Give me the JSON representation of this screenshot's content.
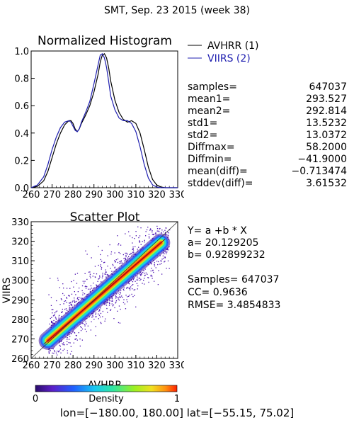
{
  "header": {
    "title": "SMT,  Sep. 23 2015 (week 38)"
  },
  "chart_data": [
    {
      "type": "line",
      "title": "Normalized Histogram",
      "xlim": [
        260,
        330
      ],
      "ylim": [
        0,
        1.0
      ],
      "x_ticks": [
        "260",
        "270",
        "280",
        "290",
        "300",
        "310",
        "320",
        "330"
      ],
      "y_ticks": [
        "0.0",
        "0.2",
        "0.4",
        "0.6",
        "0.8",
        "1.0"
      ],
      "series": [
        {
          "name": "AVHRR (1)",
          "color": "#000000",
          "x": [
            260,
            263,
            266,
            268,
            270,
            272,
            274,
            276,
            278,
            279,
            280,
            281,
            282,
            283,
            284,
            286,
            288,
            290,
            292,
            293,
            294,
            295,
            296,
            297,
            298,
            300,
            302,
            304,
            306,
            308,
            310,
            312,
            314,
            316,
            318,
            320,
            322,
            324,
            326,
            328,
            330
          ],
          "y": [
            0,
            0.01,
            0.05,
            0.12,
            0.22,
            0.32,
            0.4,
            0.46,
            0.49,
            0.49,
            0.47,
            0.43,
            0.41,
            0.43,
            0.47,
            0.53,
            0.6,
            0.7,
            0.83,
            0.92,
            0.97,
            0.98,
            0.95,
            0.88,
            0.78,
            0.64,
            0.55,
            0.5,
            0.48,
            0.49,
            0.47,
            0.4,
            0.28,
            0.15,
            0.06,
            0.02,
            0.005,
            0,
            0,
            0,
            0
          ]
        },
        {
          "name": "VIIRS (2)",
          "color": "#1f1fb0",
          "x": [
            260,
            263,
            266,
            268,
            270,
            272,
            274,
            276,
            278,
            279,
            280,
            281,
            282,
            283,
            284,
            286,
            288,
            290,
            292,
            293,
            294,
            295,
            296,
            297,
            298,
            300,
            302,
            304,
            306,
            308,
            310,
            312,
            314,
            316,
            318,
            320,
            322,
            324,
            326,
            328,
            330
          ],
          "y": [
            0,
            0.02,
            0.08,
            0.17,
            0.28,
            0.37,
            0.44,
            0.48,
            0.49,
            0.48,
            0.45,
            0.42,
            0.41,
            0.43,
            0.48,
            0.55,
            0.63,
            0.76,
            0.9,
            0.97,
            0.98,
            0.95,
            0.88,
            0.78,
            0.67,
            0.57,
            0.51,
            0.49,
            0.49,
            0.47,
            0.41,
            0.3,
            0.17,
            0.07,
            0.02,
            0.005,
            0,
            0,
            0,
            0,
            0
          ]
        }
      ]
    },
    {
      "type": "scatter",
      "title": "Scatter Plot",
      "xlabel": "AVHRR",
      "ylabel": "VIIRS",
      "xlim": [
        260,
        330
      ],
      "ylim": [
        260,
        330
      ],
      "x_ticks": [
        "260",
        "270",
        "280",
        "290",
        "300",
        "310",
        "320",
        "330"
      ],
      "y_ticks": [
        "260",
        "270",
        "280",
        "290",
        "300",
        "310",
        "320",
        "330"
      ],
      "fit": {
        "a": 20.129205,
        "b": 0.92899232
      },
      "colorbar": {
        "label": "Density",
        "min": "0",
        "max": "1"
      }
    }
  ],
  "stats": [
    {
      "label": "samples=",
      "value": "647037"
    },
    {
      "label": "mean1=",
      "value": "293.527"
    },
    {
      "label": "mean2=",
      "value": "292.814"
    },
    {
      "label": "std1=",
      "value": "13.5232"
    },
    {
      "label": "std2=",
      "value": "13.0372"
    },
    {
      "label": "Diffmax=",
      "value": "58.2000"
    },
    {
      "label": "Diffmin=",
      "value": "−41.9000"
    },
    {
      "label": "mean(diff)=",
      "value": "−0.713474"
    },
    {
      "label": "stddev(diff)=",
      "value": "3.61532"
    }
  ],
  "regression": {
    "equation": "Y= a +b * X",
    "a_text": "a= 20.129205",
    "b_text": "b= 0.92899232",
    "samples_text": "Samples= 647037",
    "cc_text": "CC=  0.9636",
    "rmse_text": "RMSE= 3.4854833"
  },
  "footer": {
    "range": "lon=[−180.00, 180.00] lat=[−55.15, 75.02]"
  }
}
